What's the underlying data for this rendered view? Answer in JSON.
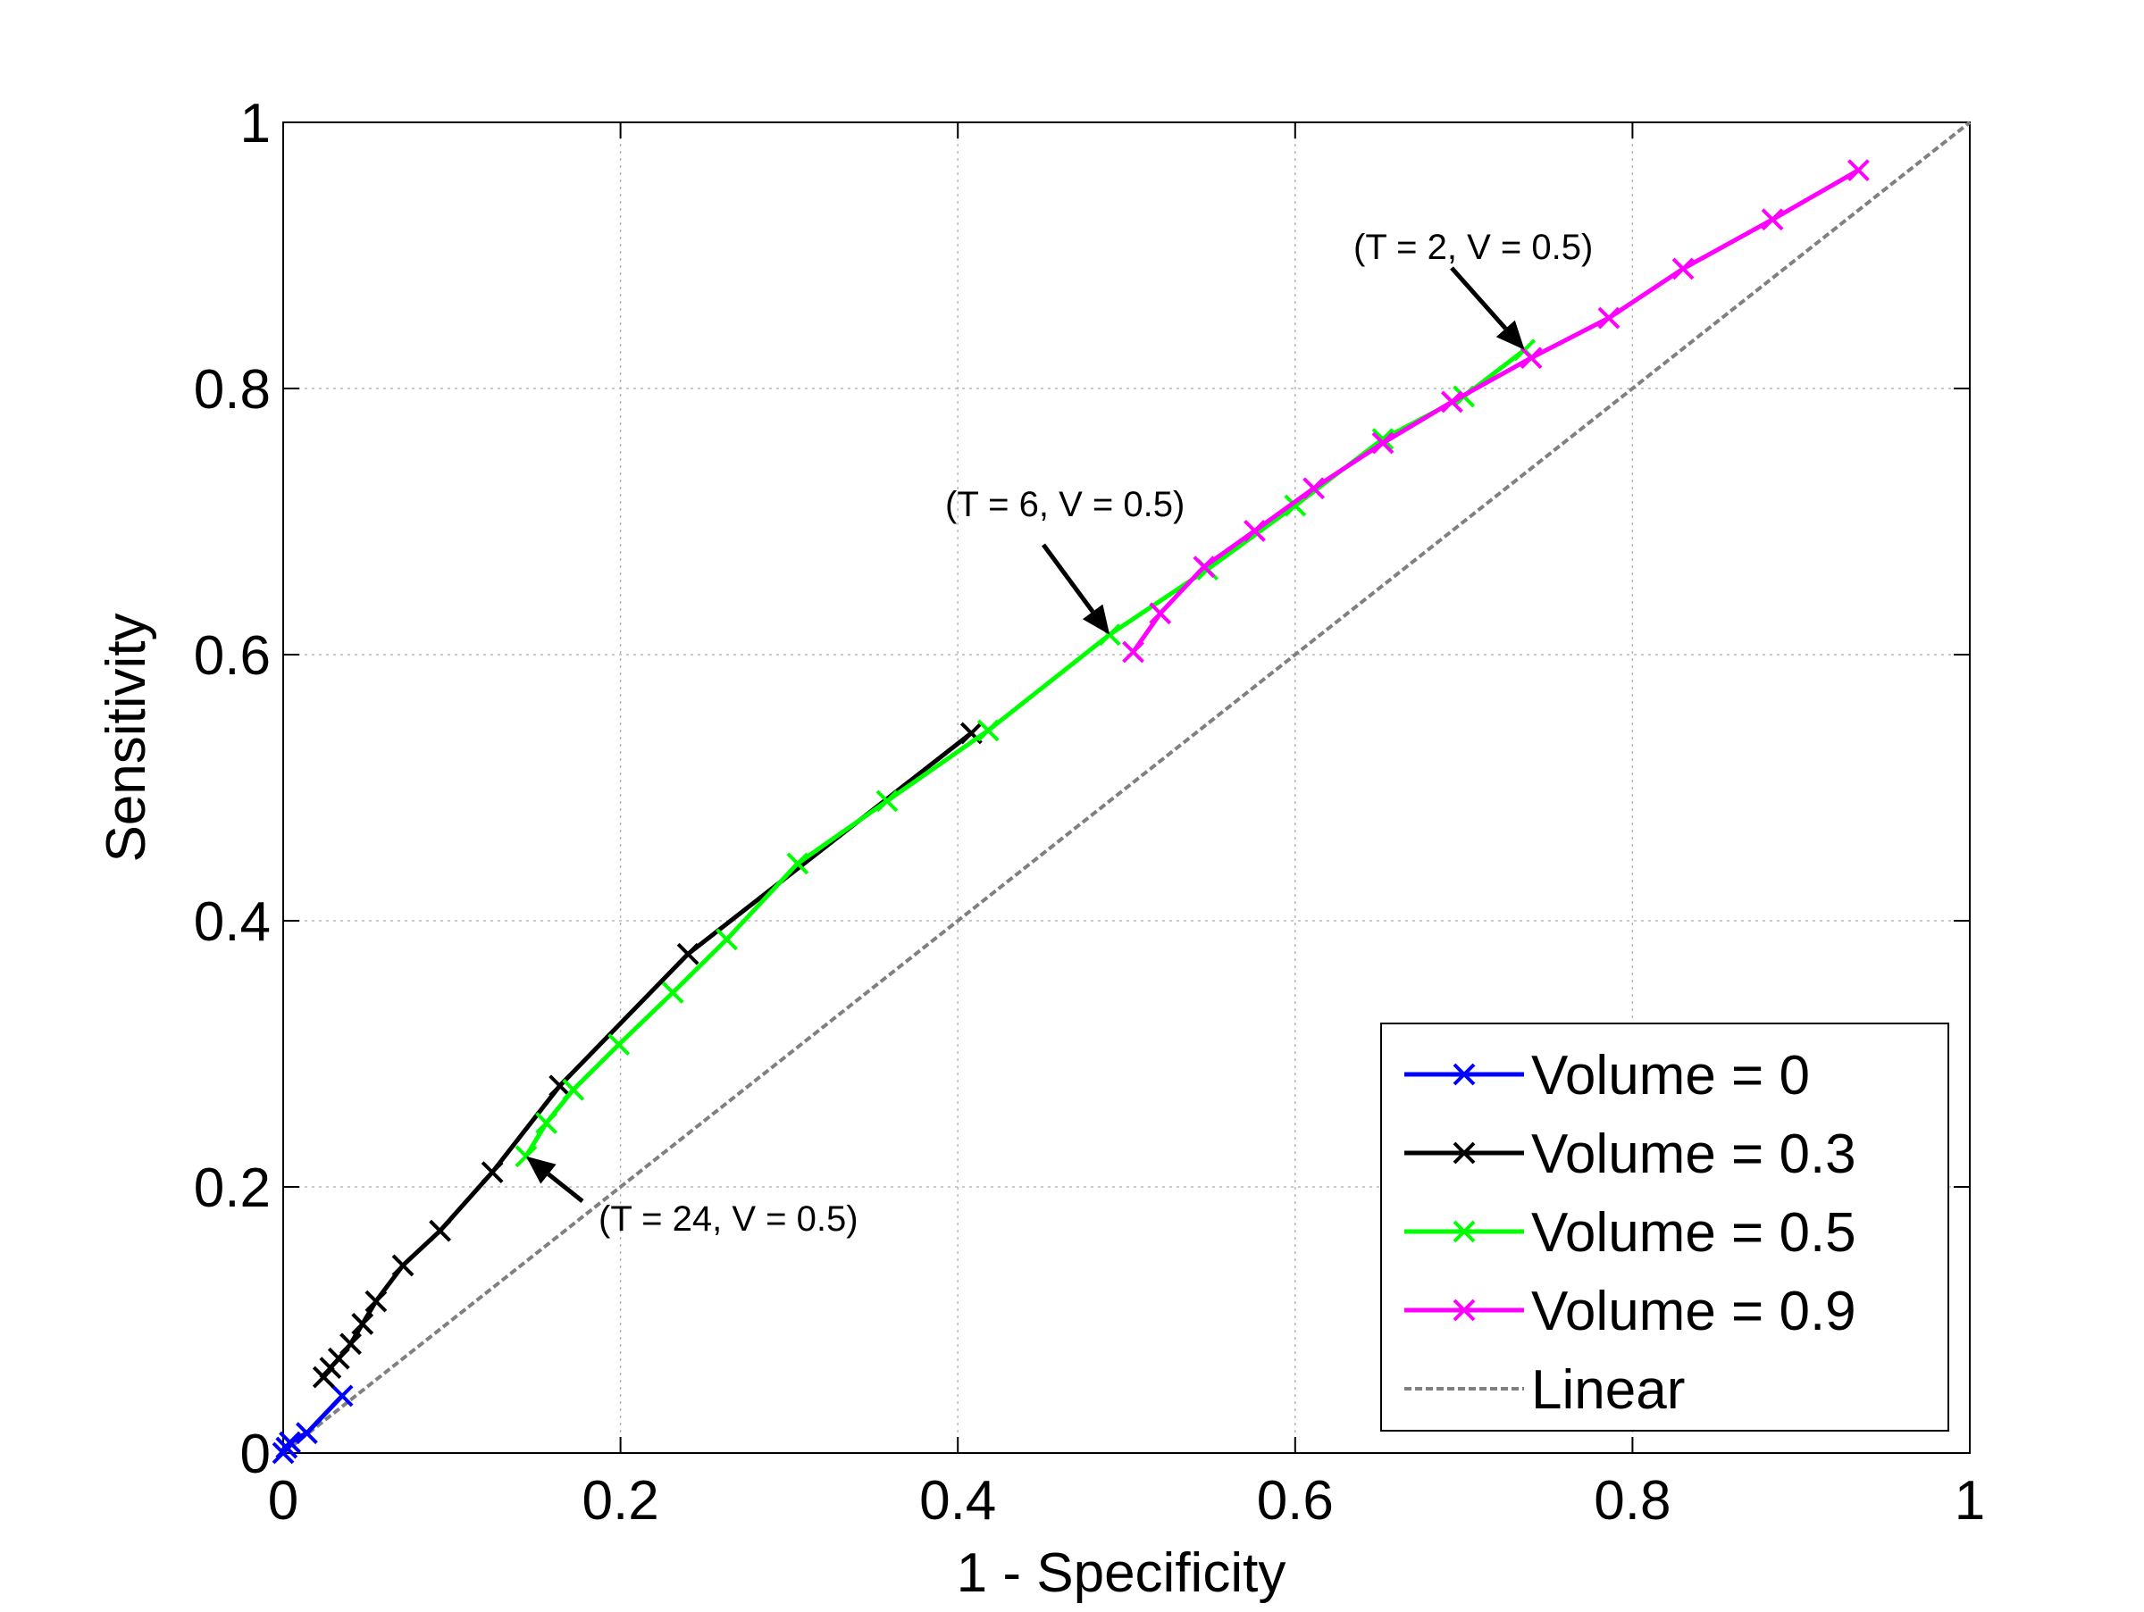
{
  "chart_data": {
    "type": "line",
    "title": "",
    "xlabel": "1 - Specificity",
    "ylabel": "Sensitivity",
    "xlim": [
      0,
      1
    ],
    "ylim": [
      0,
      1
    ],
    "xticks": [
      "0",
      "0.2",
      "0.4",
      "0.6",
      "0.8",
      "1"
    ],
    "yticks": [
      "0",
      "0.2",
      "0.4",
      "0.6",
      "0.8",
      "1"
    ],
    "xtick_values": [
      0,
      0.2,
      0.4,
      0.6,
      0.8,
      1
    ],
    "ytick_values": [
      0,
      0.2,
      0.4,
      0.6,
      0.8,
      1
    ],
    "grid": true,
    "legend_position": "bottom-right",
    "series": [
      {
        "name": "Volume = 0",
        "color": "#0000ff",
        "marker": "x",
        "points": [
          [
            0.0,
            0.0
          ],
          [
            0.002,
            0.004
          ],
          [
            0.004,
            0.008
          ],
          [
            0.014,
            0.015
          ],
          [
            0.035,
            0.043
          ]
        ]
      },
      {
        "name": "Volume = 0.3",
        "color": "#000000",
        "marker": "x",
        "points": [
          [
            0.024,
            0.057
          ],
          [
            0.028,
            0.064
          ],
          [
            0.033,
            0.071
          ],
          [
            0.04,
            0.082
          ],
          [
            0.047,
            0.097
          ],
          [
            0.055,
            0.114
          ],
          [
            0.071,
            0.141
          ],
          [
            0.093,
            0.167
          ],
          [
            0.124,
            0.211
          ],
          [
            0.164,
            0.276
          ],
          [
            0.24,
            0.375
          ],
          [
            0.408,
            0.541
          ]
        ]
      },
      {
        "name": "Volume = 0.5",
        "color": "#00ff00",
        "marker": "x",
        "points": [
          [
            0.144,
            0.223
          ],
          [
            0.156,
            0.248
          ],
          [
            0.172,
            0.273
          ],
          [
            0.199,
            0.307
          ],
          [
            0.231,
            0.346
          ],
          [
            0.263,
            0.386
          ],
          [
            0.305,
            0.443
          ],
          [
            0.358,
            0.49
          ],
          [
            0.418,
            0.543
          ],
          [
            0.49,
            0.615
          ],
          [
            0.548,
            0.664
          ],
          [
            0.6,
            0.712
          ],
          [
            0.652,
            0.762
          ],
          [
            0.7,
            0.794
          ],
          [
            0.736,
            0.829
          ]
        ]
      },
      {
        "name": "Volume = 0.9",
        "color": "#ff00ff",
        "marker": "x",
        "points": [
          [
            0.504,
            0.602
          ],
          [
            0.52,
            0.631
          ],
          [
            0.546,
            0.666
          ],
          [
            0.576,
            0.693
          ],
          [
            0.611,
            0.725
          ],
          [
            0.652,
            0.759
          ],
          [
            0.693,
            0.79
          ],
          [
            0.74,
            0.823
          ],
          [
            0.786,
            0.853
          ],
          [
            0.83,
            0.89
          ],
          [
            0.883,
            0.927
          ],
          [
            0.934,
            0.964
          ]
        ]
      },
      {
        "name": "Linear",
        "color": "#808080",
        "dashed": true,
        "points": [
          [
            0,
            0
          ],
          [
            1,
            1
          ]
        ]
      }
    ],
    "annotations": [
      {
        "text": "(T = 2, V = 0.5)",
        "point": [
          0.736,
          0.829
        ]
      },
      {
        "text": "(T = 6, V = 0.5)",
        "point": [
          0.49,
          0.615
        ]
      },
      {
        "text": "(T = 24, V = 0.5)",
        "point": [
          0.144,
          0.223
        ]
      }
    ]
  }
}
